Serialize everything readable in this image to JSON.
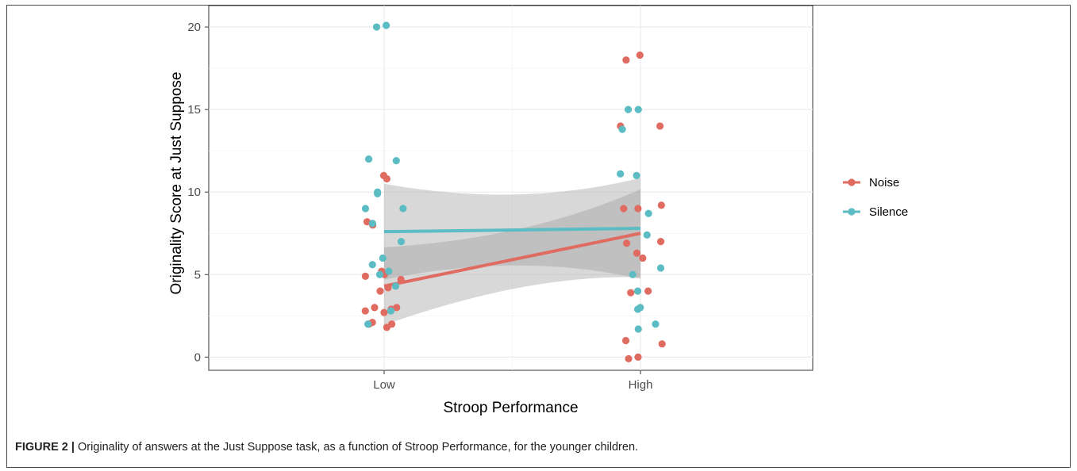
{
  "chart_data": {
    "type": "scatter",
    "xlabel": "Stroop Performance",
    "ylabel": "Originality Score at Just Suppose",
    "categories": [
      "Low",
      "High"
    ],
    "ylim": [
      -0.8,
      21.3
    ],
    "yticks": [
      0,
      5,
      10,
      15,
      20
    ],
    "grid": true,
    "legend_position": "right",
    "series": [
      {
        "name": "Noise",
        "color": "#e06c61",
        "trend": {
          "x": [
            "Low",
            "High"
          ],
          "y": [
            4.3,
            7.5
          ],
          "ci_low": [
            1.9,
            4.5
          ],
          "ci_high": [
            6.6,
            10.6
          ]
        },
        "points": [
          {
            "x": "Low",
            "y": 11.0
          },
          {
            "x": "Low",
            "y": 10.8
          },
          {
            "x": "Low",
            "y": 8.2
          },
          {
            "x": "Low",
            "y": 8.0
          },
          {
            "x": "Low",
            "y": 5.2
          },
          {
            "x": "Low",
            "y": 5.0
          },
          {
            "x": "Low",
            "y": 4.9
          },
          {
            "x": "Low",
            "y": 4.7
          },
          {
            "x": "Low",
            "y": 4.2
          },
          {
            "x": "Low",
            "y": 4.0
          },
          {
            "x": "Low",
            "y": 3.0
          },
          {
            "x": "Low",
            "y": 3.0
          },
          {
            "x": "Low",
            "y": 2.9
          },
          {
            "x": "Low",
            "y": 2.8
          },
          {
            "x": "Low",
            "y": 2.7
          },
          {
            "x": "Low",
            "y": 2.1
          },
          {
            "x": "Low",
            "y": 2.0
          },
          {
            "x": "Low",
            "y": 2.0
          },
          {
            "x": "Low",
            "y": 1.8
          },
          {
            "x": "High",
            "y": 18.3
          },
          {
            "x": "High",
            "y": 18.0
          },
          {
            "x": "High",
            "y": 14.0
          },
          {
            "x": "High",
            "y": 14.0
          },
          {
            "x": "High",
            "y": 9.2
          },
          {
            "x": "High",
            "y": 9.0
          },
          {
            "x": "High",
            "y": 9.0
          },
          {
            "x": "High",
            "y": 7.0
          },
          {
            "x": "High",
            "y": 6.9
          },
          {
            "x": "High",
            "y": 6.3
          },
          {
            "x": "High",
            "y": 6.0
          },
          {
            "x": "High",
            "y": 4.0
          },
          {
            "x": "High",
            "y": 3.9
          },
          {
            "x": "High",
            "y": 1.0
          },
          {
            "x": "High",
            "y": 0.8
          },
          {
            "x": "High",
            "y": 0.0
          },
          {
            "x": "High",
            "y": -0.1
          }
        ]
      },
      {
        "name": "Silence",
        "color": "#5bbcc4",
        "trend": {
          "x": [
            "Low",
            "High"
          ],
          "y": [
            7.6,
            7.8
          ],
          "ci_low": [
            4.6,
            4.5
          ],
          "ci_high": [
            10.4,
            11.0
          ]
        },
        "points": [
          {
            "x": "Low",
            "y": 20.1
          },
          {
            "x": "Low",
            "y": 20.0
          },
          {
            "x": "Low",
            "y": 12.0
          },
          {
            "x": "Low",
            "y": 11.9
          },
          {
            "x": "Low",
            "y": 10.0
          },
          {
            "x": "Low",
            "y": 9.9
          },
          {
            "x": "Low",
            "y": 9.0
          },
          {
            "x": "Low",
            "y": 9.0
          },
          {
            "x": "Low",
            "y": 8.1
          },
          {
            "x": "Low",
            "y": 7.0
          },
          {
            "x": "Low",
            "y": 6.0
          },
          {
            "x": "Low",
            "y": 5.6
          },
          {
            "x": "Low",
            "y": 5.2
          },
          {
            "x": "Low",
            "y": 5.0
          },
          {
            "x": "Low",
            "y": 4.3
          },
          {
            "x": "Low",
            "y": 2.8
          },
          {
            "x": "Low",
            "y": 2.0
          },
          {
            "x": "High",
            "y": 15.0
          },
          {
            "x": "High",
            "y": 15.0
          },
          {
            "x": "High",
            "y": 13.8
          },
          {
            "x": "High",
            "y": 11.1
          },
          {
            "x": "High",
            "y": 11.0
          },
          {
            "x": "High",
            "y": 8.7
          },
          {
            "x": "High",
            "y": 7.4
          },
          {
            "x": "High",
            "y": 5.4
          },
          {
            "x": "High",
            "y": 5.0
          },
          {
            "x": "High",
            "y": 4.0
          },
          {
            "x": "High",
            "y": 3.0
          },
          {
            "x": "High",
            "y": 2.9
          },
          {
            "x": "High",
            "y": 2.0
          },
          {
            "x": "High",
            "y": 1.7
          }
        ]
      }
    ]
  },
  "caption": {
    "label": "FIGURE 2 |",
    "text": "Originality of answers at the Just Suppose task, as a function of Stroop Performance, for the younger children."
  }
}
